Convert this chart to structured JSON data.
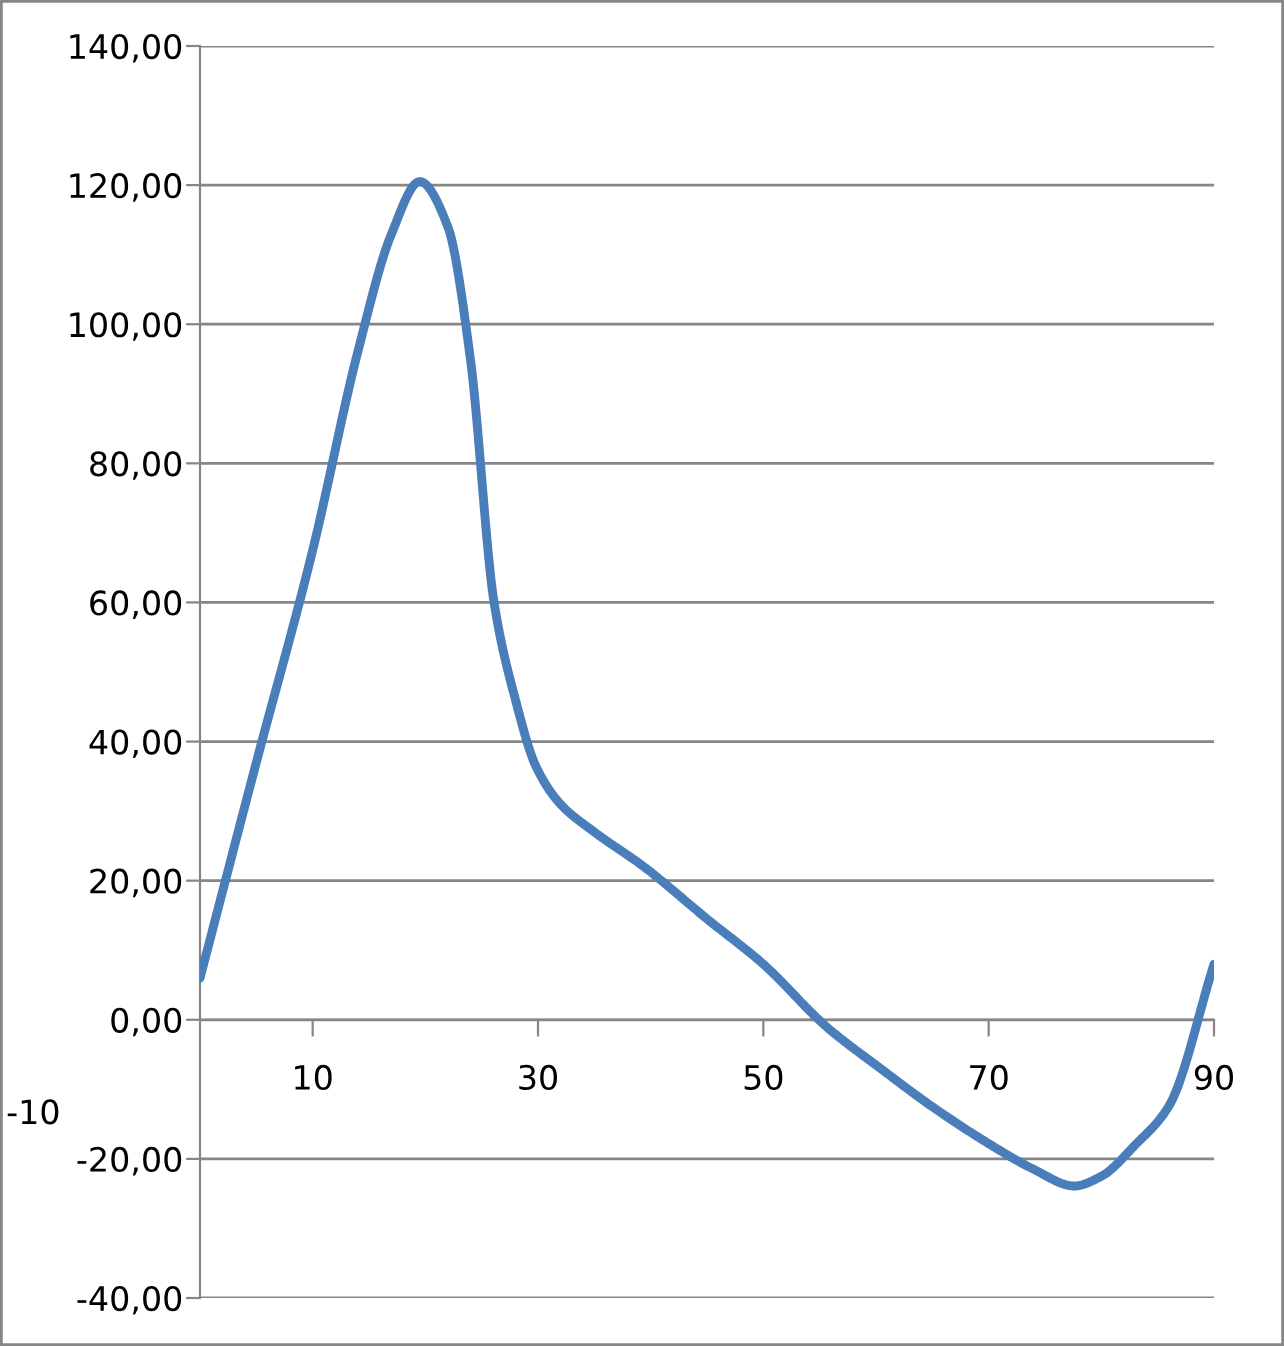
{
  "chart_data": {
    "type": "line",
    "x": [
      0,
      5,
      10,
      14,
      17,
      19.5,
      22,
      24,
      26.1,
      28,
      29.8,
      32,
      35,
      39.4,
      45,
      50,
      55.6,
      60.4,
      65,
      70,
      74,
      77.6,
      80,
      83,
      86,
      90
    ],
    "series": [
      {
        "color": "#4a7ebb",
        "values": [
          6,
          37,
          67.5,
          96,
          113,
          120.5,
          114,
          95,
          60,
          46,
          36.5,
          31,
          27,
          22,
          14.5,
          8,
          -1,
          -7,
          -12.5,
          -17.8,
          -21.5,
          -23.9,
          -22.5,
          -18,
          -12.4,
          8
        ]
      }
    ],
    "xlim": [
      0,
      90
    ],
    "xticks": [
      10,
      30,
      50,
      70,
      90
    ],
    "ylim": [
      -40,
      140
    ],
    "yticks": [
      {
        "value": -40,
        "label": "-40,00"
      },
      {
        "value": -20,
        "label": "-20,00"
      },
      {
        "value": 0,
        "label": "0,00"
      },
      {
        "value": 20,
        "label": "20,00"
      },
      {
        "value": 40,
        "label": "40,00"
      },
      {
        "value": 60,
        "label": "60,00"
      },
      {
        "value": 80,
        "label": "80,00"
      },
      {
        "value": 100,
        "label": "100,00"
      },
      {
        "value": 120,
        "label": "120,00"
      },
      {
        "value": 140,
        "label": "140,00"
      }
    ],
    "annotations": [
      "-10"
    ],
    "grid": "y",
    "marker": "none",
    "line_style": "solid"
  }
}
